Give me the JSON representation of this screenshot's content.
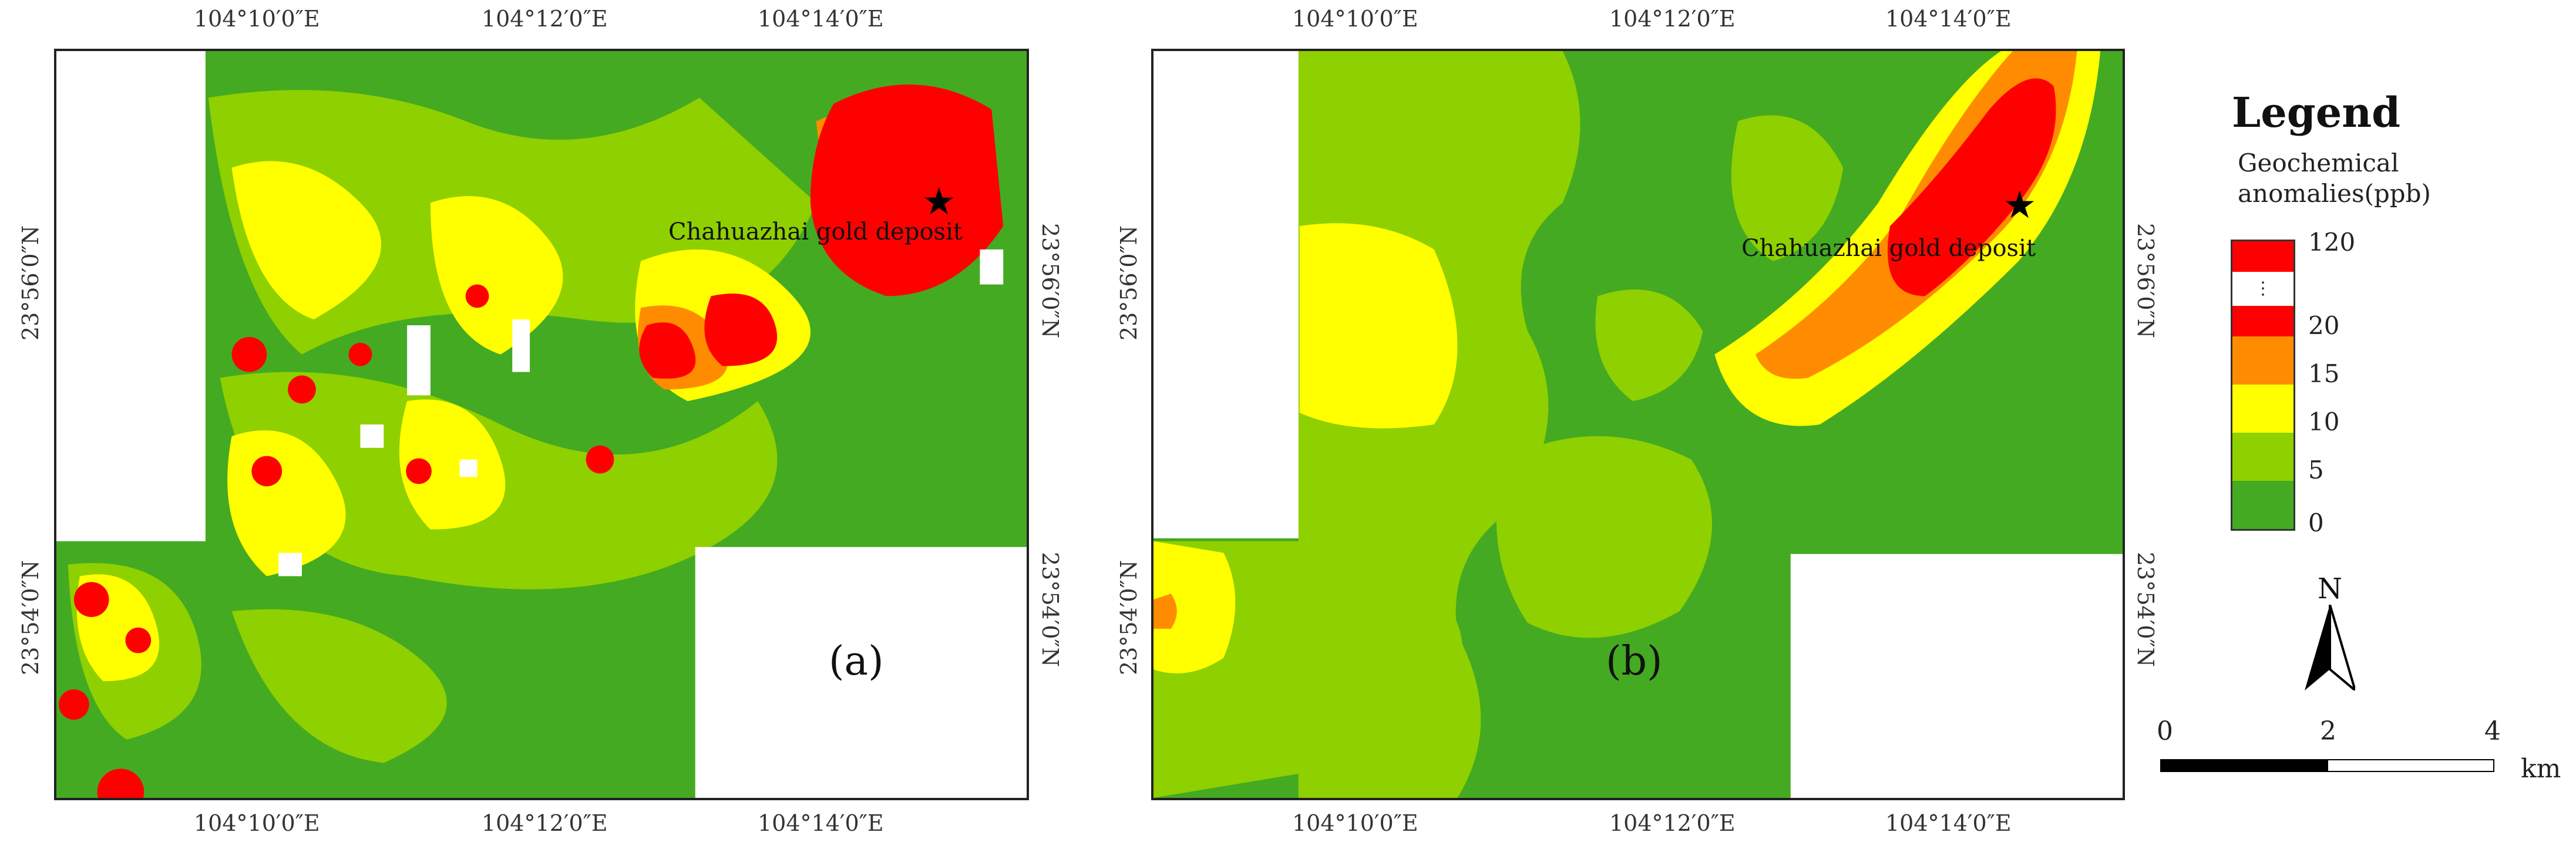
{
  "panels": [
    {
      "label": "(a)",
      "deposit_label": "Chahuazhai gold deposit",
      "top_ticks": [
        "104°10′0″E",
        "104°12′0″E",
        "104°14′0″E"
      ],
      "bottom_ticks": [
        "104°10′0″E",
        "104°12′0″E",
        "104°14′0″E"
      ],
      "left_ticks": [
        "23°56′0″N",
        "23°54′0″N"
      ],
      "right_ticks": [
        "23°56′0″N",
        "23°54′0″N"
      ]
    },
    {
      "label": "(b)",
      "deposit_label": "Chahuazhai gold deposit",
      "top_ticks": [
        "104°10′0″E",
        "104°12′0″E",
        "104°14′0″E"
      ],
      "bottom_ticks": [
        "104°10′0″E",
        "104°12′0″E",
        "104°14′0″E"
      ],
      "left_ticks": [
        "23°56′0″N",
        "23°54′0″N"
      ],
      "right_ticks": [
        "23°56′0″N",
        "23°54′0″N"
      ]
    }
  ],
  "legend": {
    "title": "Legend",
    "subtitle_line1": "Geochemical",
    "subtitle_line2": "anomalies(ppb)",
    "values": [
      "120",
      "20",
      "15",
      "10",
      "5",
      "0"
    ],
    "ellipsis": "⋮",
    "colors": {
      "anomaly_high": "#ff0000",
      "anomaly_20_plus": "#ff0000",
      "class_15_20": "#ff8c00",
      "class_10_15": "#ffff00",
      "class_5_10": "#8fd000",
      "class_0_5": "#44aa22",
      "no_data": "#ffffff"
    }
  },
  "north_arrow": {
    "letter": "N",
    "icon": "north-arrow-icon"
  },
  "scale_bar": {
    "labels": [
      "0",
      "2",
      "4"
    ],
    "unit": "km"
  }
}
